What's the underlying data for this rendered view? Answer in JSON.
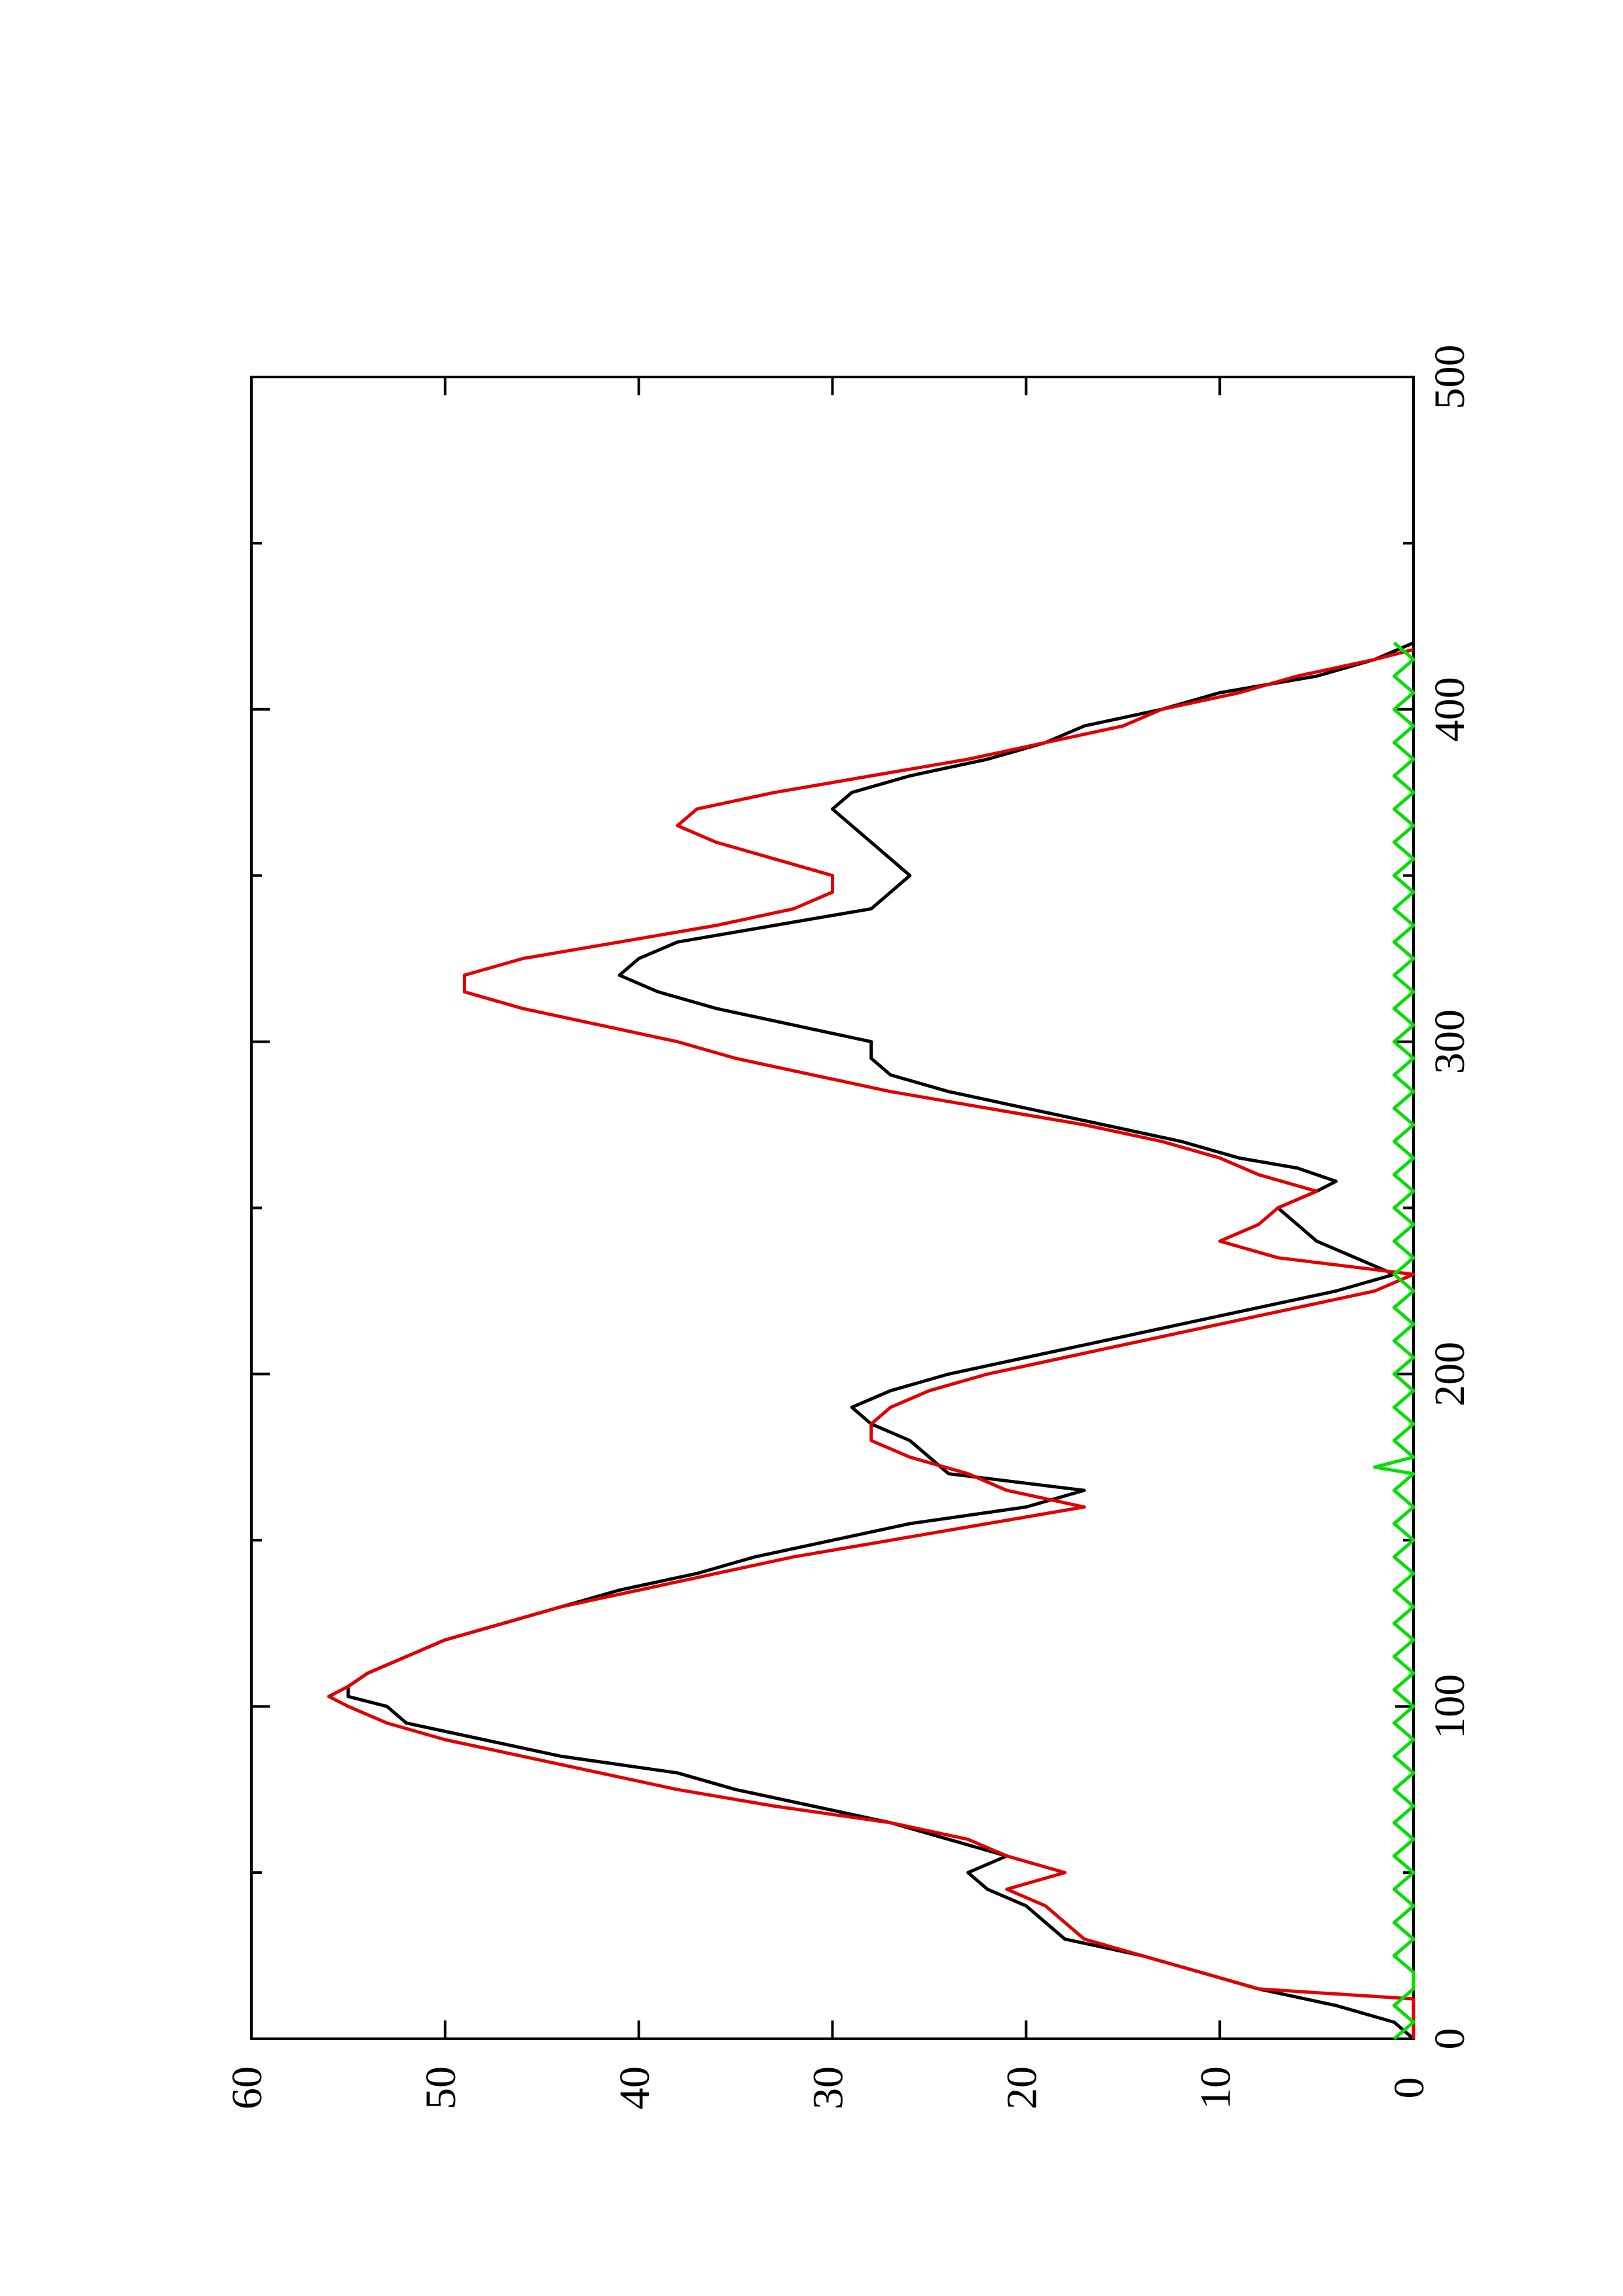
{
  "chart_data": {
    "type": "line",
    "orientation": "rotated 90 degrees counter-clockwise",
    "title": "",
    "xlabel": "",
    "ylabel": "",
    "xlim": [
      0,
      500
    ],
    "ylim": [
      0,
      60
    ],
    "x_ticks": [
      0,
      100,
      200,
      300,
      400,
      500
    ],
    "x_tick_labels": [
      "0",
      "100",
      "200",
      "300",
      "400",
      "500"
    ],
    "y_ticks": [
      0,
      10,
      20,
      30,
      40,
      50,
      60
    ],
    "y_tick_labels": [
      "0",
      "10",
      "20",
      "30",
      "40",
      "50",
      "60"
    ],
    "grid": false,
    "legend": "none",
    "series": [
      {
        "color": "#000000",
        "points": [
          [
            0,
            0
          ],
          [
            5,
            1
          ],
          [
            10,
            4
          ],
          [
            15,
            8
          ],
          [
            20,
            11
          ],
          [
            25,
            14
          ],
          [
            30,
            18
          ],
          [
            35,
            19
          ],
          [
            40,
            20
          ],
          [
            45,
            22
          ],
          [
            50,
            23
          ],
          [
            55,
            21
          ],
          [
            60,
            24
          ],
          [
            65,
            27
          ],
          [
            70,
            31
          ],
          [
            75,
            35
          ],
          [
            80,
            38
          ],
          [
            85,
            44
          ],
          [
            90,
            48
          ],
          [
            95,
            52
          ],
          [
            100,
            53
          ],
          [
            103,
            55
          ],
          [
            106,
            55
          ],
          [
            110,
            54
          ],
          [
            115,
            52
          ],
          [
            120,
            50
          ],
          [
            125,
            47
          ],
          [
            130,
            44
          ],
          [
            135,
            41
          ],
          [
            140,
            37
          ],
          [
            145,
            34
          ],
          [
            150,
            30
          ],
          [
            155,
            26
          ],
          [
            160,
            20
          ],
          [
            165,
            17
          ],
          [
            170,
            24
          ],
          [
            175,
            25
          ],
          [
            180,
            26
          ],
          [
            185,
            28
          ],
          [
            190,
            29
          ],
          [
            195,
            27
          ],
          [
            200,
            24
          ],
          [
            205,
            20
          ],
          [
            210,
            16
          ],
          [
            215,
            12
          ],
          [
            220,
            8
          ],
          [
            225,
            4
          ],
          [
            230,
            1
          ],
          [
            235,
            3
          ],
          [
            240,
            5
          ],
          [
            245,
            6
          ],
          [
            250,
            7
          ],
          [
            255,
            5
          ],
          [
            258,
            4
          ],
          [
            262,
            6
          ],
          [
            265,
            9
          ],
          [
            270,
            12
          ],
          [
            275,
            16
          ],
          [
            280,
            20
          ],
          [
            285,
            24
          ],
          [
            290,
            27
          ],
          [
            295,
            28
          ],
          [
            300,
            28
          ],
          [
            305,
            32
          ],
          [
            310,
            36
          ],
          [
            315,
            39
          ],
          [
            320,
            41
          ],
          [
            325,
            40
          ],
          [
            330,
            38
          ],
          [
            335,
            33
          ],
          [
            340,
            28
          ],
          [
            345,
            27
          ],
          [
            350,
            26
          ],
          [
            355,
            27
          ],
          [
            360,
            28
          ],
          [
            365,
            29
          ],
          [
            370,
            30
          ],
          [
            375,
            29
          ],
          [
            380,
            26
          ],
          [
            385,
            22
          ],
          [
            390,
            19
          ],
          [
            395,
            17
          ],
          [
            400,
            13
          ],
          [
            405,
            10
          ],
          [
            410,
            5
          ],
          [
            415,
            2
          ],
          [
            420,
            0
          ]
        ]
      },
      {
        "color": "#e00000",
        "points": [
          [
            0,
            0
          ],
          [
            12,
            0
          ],
          [
            15,
            8
          ],
          [
            20,
            11
          ],
          [
            25,
            14
          ],
          [
            30,
            17
          ],
          [
            35,
            18
          ],
          [
            40,
            19
          ],
          [
            45,
            21
          ],
          [
            50,
            18
          ],
          [
            55,
            21
          ],
          [
            60,
            23
          ],
          [
            65,
            27
          ],
          [
            70,
            33
          ],
          [
            75,
            38
          ],
          [
            80,
            42
          ],
          [
            85,
            46
          ],
          [
            90,
            50
          ],
          [
            95,
            53
          ],
          [
            100,
            55
          ],
          [
            103,
            56
          ],
          [
            106,
            55
          ],
          [
            110,
            54
          ],
          [
            115,
            52
          ],
          [
            120,
            50
          ],
          [
            125,
            47
          ],
          [
            130,
            44
          ],
          [
            135,
            40
          ],
          [
            140,
            36
          ],
          [
            145,
            32
          ],
          [
            150,
            27
          ],
          [
            155,
            22
          ],
          [
            160,
            17
          ],
          [
            165,
            21
          ],
          [
            170,
            23
          ],
          [
            175,
            26
          ],
          [
            180,
            28
          ],
          [
            185,
            28
          ],
          [
            190,
            27
          ],
          [
            195,
            25
          ],
          [
            200,
            22
          ],
          [
            205,
            18
          ],
          [
            210,
            14
          ],
          [
            215,
            10
          ],
          [
            220,
            6
          ],
          [
            225,
            2
          ],
          [
            230,
            0
          ],
          [
            235,
            7
          ],
          [
            240,
            10
          ],
          [
            245,
            8
          ],
          [
            250,
            7
          ],
          [
            255,
            5
          ],
          [
            260,
            8
          ],
          [
            265,
            10
          ],
          [
            270,
            13
          ],
          [
            275,
            17
          ],
          [
            280,
            22
          ],
          [
            285,
            27
          ],
          [
            290,
            31
          ],
          [
            295,
            35
          ],
          [
            300,
            38
          ],
          [
            305,
            42
          ],
          [
            310,
            46
          ],
          [
            315,
            49
          ],
          [
            320,
            49
          ],
          [
            325,
            46
          ],
          [
            330,
            41
          ],
          [
            335,
            36
          ],
          [
            340,
            32
          ],
          [
            345,
            30
          ],
          [
            350,
            30
          ],
          [
            355,
            33
          ],
          [
            360,
            36
          ],
          [
            365,
            38
          ],
          [
            370,
            37
          ],
          [
            375,
            33
          ],
          [
            380,
            28
          ],
          [
            385,
            23
          ],
          [
            390,
            19
          ],
          [
            395,
            15
          ],
          [
            400,
            13
          ],
          [
            405,
            9
          ],
          [
            410,
            6
          ],
          [
            415,
            2
          ],
          [
            418,
            0
          ]
        ]
      },
      {
        "color": "#00e000",
        "points": [
          [
            0,
            1
          ],
          [
            5,
            0
          ],
          [
            10,
            1
          ],
          [
            15,
            0
          ],
          [
            20,
            0
          ],
          [
            25,
            1
          ],
          [
            30,
            0
          ],
          [
            35,
            1
          ],
          [
            40,
            0
          ],
          [
            45,
            1
          ],
          [
            50,
            0
          ],
          [
            55,
            1
          ],
          [
            60,
            0
          ],
          [
            65,
            1
          ],
          [
            70,
            0
          ],
          [
            75,
            1
          ],
          [
            80,
            0
          ],
          [
            85,
            1
          ],
          [
            90,
            0
          ],
          [
            95,
            1
          ],
          [
            100,
            0
          ],
          [
            105,
            1
          ],
          [
            110,
            0
          ],
          [
            115,
            1
          ],
          [
            120,
            0
          ],
          [
            125,
            1
          ],
          [
            130,
            0
          ],
          [
            135,
            1
          ],
          [
            140,
            0
          ],
          [
            145,
            1
          ],
          [
            150,
            0
          ],
          [
            155,
            1
          ],
          [
            160,
            0
          ],
          [
            165,
            1
          ],
          [
            170,
            0
          ],
          [
            172,
            2
          ],
          [
            175,
            0
          ],
          [
            180,
            1
          ],
          [
            185,
            0
          ],
          [
            190,
            1
          ],
          [
            195,
            0
          ],
          [
            200,
            1
          ],
          [
            205,
            0
          ],
          [
            210,
            1
          ],
          [
            215,
            0
          ],
          [
            220,
            1
          ],
          [
            225,
            0
          ],
          [
            230,
            1
          ],
          [
            235,
            0
          ],
          [
            240,
            1
          ],
          [
            245,
            0
          ],
          [
            250,
            1
          ],
          [
            255,
            0
          ],
          [
            260,
            1
          ],
          [
            265,
            0
          ],
          [
            270,
            1
          ],
          [
            275,
            0
          ],
          [
            280,
            1
          ],
          [
            285,
            0
          ],
          [
            290,
            1
          ],
          [
            295,
            0
          ],
          [
            300,
            1
          ],
          [
            305,
            0
          ],
          [
            310,
            1
          ],
          [
            315,
            0
          ],
          [
            320,
            1
          ],
          [
            325,
            0
          ],
          [
            330,
            1
          ],
          [
            335,
            0
          ],
          [
            340,
            1
          ],
          [
            345,
            0
          ],
          [
            350,
            1
          ],
          [
            355,
            0
          ],
          [
            360,
            1
          ],
          [
            365,
            0
          ],
          [
            370,
            1
          ],
          [
            375,
            0
          ],
          [
            380,
            1
          ],
          [
            385,
            0
          ],
          [
            390,
            1
          ],
          [
            395,
            0
          ],
          [
            400,
            1
          ],
          [
            405,
            0
          ],
          [
            410,
            1
          ],
          [
            415,
            0
          ],
          [
            420,
            1
          ]
        ]
      }
    ]
  }
}
